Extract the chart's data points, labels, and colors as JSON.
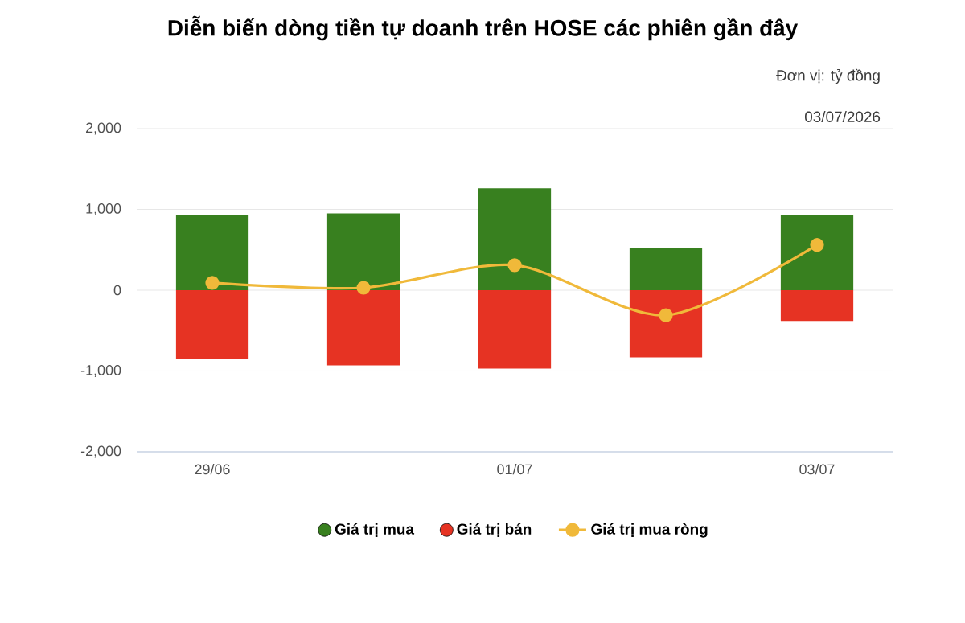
{
  "chart_data": {
    "type": "bar",
    "title": "Diễn biến dòng tiền tự doanh trên HOSE các phiên gần đây",
    "annotations": [
      "Đơn vị: tỷ đồng",
      "03/07/2026"
    ],
    "categories": [
      "29/06",
      null,
      "01/07",
      null,
      "03/07"
    ],
    "series": [
      {
        "name": "Giá trị mua",
        "color": "#38801f",
        "values": [
          930,
          950,
          1260,
          520,
          930
        ]
      },
      {
        "name": "Giá trị bán",
        "color": "#e63323",
        "values": [
          -850,
          -930,
          -970,
          -830,
          -380
        ]
      },
      {
        "name": "Giá trị mua ròng",
        "type": "line",
        "color": "#f0b93a",
        "marker": "circle",
        "values": [
          90,
          30,
          310,
          -310,
          560
        ]
      }
    ],
    "ylim": [
      -2000,
      2000
    ],
    "yticks": [
      {
        "value": -2000,
        "label": "-2,000"
      },
      {
        "value": -1000,
        "label": "-1,000"
      },
      {
        "value": 0,
        "label": "0"
      },
      {
        "value": 1000,
        "label": "1,000"
      },
      {
        "value": 2000,
        "label": "2,000"
      }
    ],
    "stacked": true,
    "grid": "y",
    "legend": "bottom"
  }
}
